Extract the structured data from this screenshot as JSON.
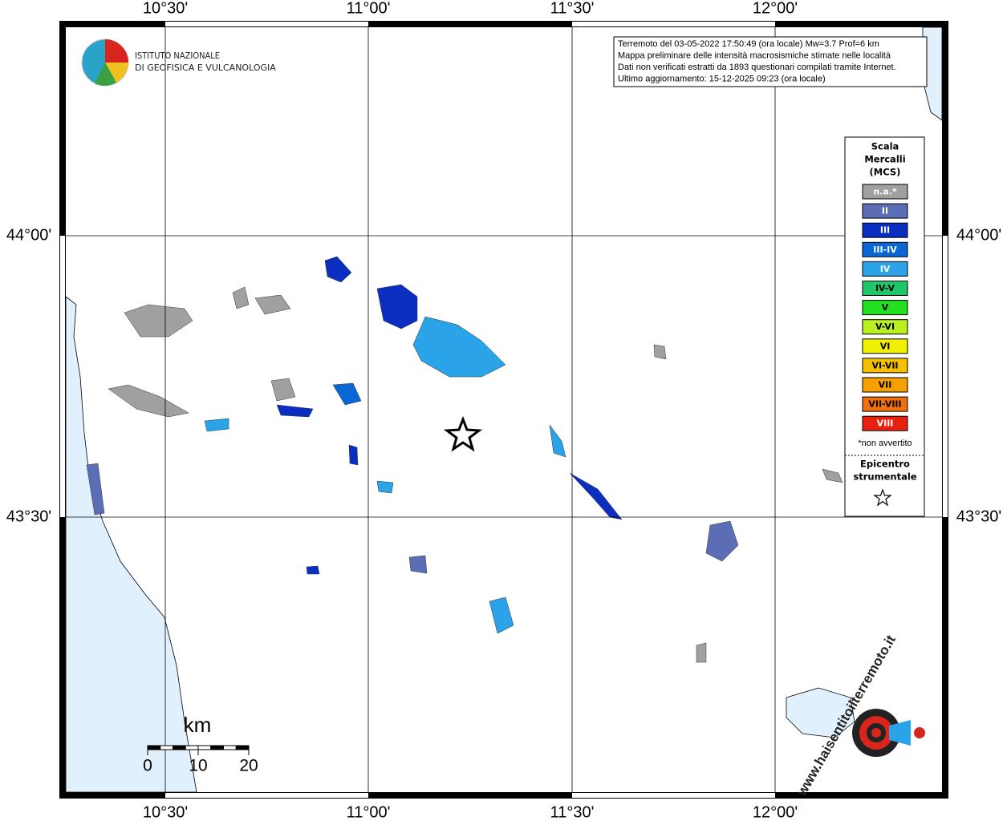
{
  "map": {
    "lon_labels": [
      "10°30'",
      "11°00'",
      "11°30'",
      "12°00'"
    ],
    "lat_labels": [
      "44°00'",
      "43°30'"
    ],
    "info": [
      "Terremoto del 03-05-2022 17:50:49 (ora locale) Mw=3.7 Prof=6 km",
      "Mappa preliminare delle intensità macrosismiche stimate nelle località",
      "Dati non verificati estratti da 1893 questionari compilati tramite Internet.",
      "Ultimo aggiornamento: 15-12-2025 09:23 (ora locale)"
    ],
    "logo": [
      "ISTITUTO NAZIONALE",
      "DI GEOFISICA E VULCANOLOGIA"
    ],
    "legend": {
      "title": [
        "Scala",
        "Mercalli",
        "(MCS)"
      ],
      "items": [
        {
          "label": "n.a.*",
          "color": "#a0a0a0",
          "text_color": "#ffffff"
        },
        {
          "label": "II",
          "color": "#5b6db5",
          "text_color": "#ffffff"
        },
        {
          "label": "III",
          "color": "#0a2fc0",
          "text_color": "#ffffff"
        },
        {
          "label": "III-IV",
          "color": "#0a66d4",
          "text_color": "#ffffff"
        },
        {
          "label": "IV",
          "color": "#2aa3e8",
          "text_color": "#ffffff"
        },
        {
          "label": "IV-V",
          "color": "#1ec86a",
          "text_color": "#000000"
        },
        {
          "label": "V",
          "color": "#22e020",
          "text_color": "#000000"
        },
        {
          "label": "V-VI",
          "color": "#b8f020",
          "text_color": "#000000"
        },
        {
          "label": "VI",
          "color": "#f0f000",
          "text_color": "#000000"
        },
        {
          "label": "VI-VII",
          "color": "#f5c000",
          "text_color": "#000000"
        },
        {
          "label": "VII",
          "color": "#f5a000",
          "text_color": "#000000"
        },
        {
          "label": "VII-VIII",
          "color": "#f07010",
          "text_color": "#000000"
        },
        {
          "label": "VIII",
          "color": "#e82010",
          "text_color": "#ffffff"
        }
      ],
      "note": "*non avvertito",
      "epicenter": [
        "Epicentro",
        "strumentale"
      ]
    },
    "scale": {
      "unit": "km",
      "ticks": [
        0,
        10,
        20
      ]
    },
    "watermark": "www.haisentitoilterremoto.it"
  }
}
